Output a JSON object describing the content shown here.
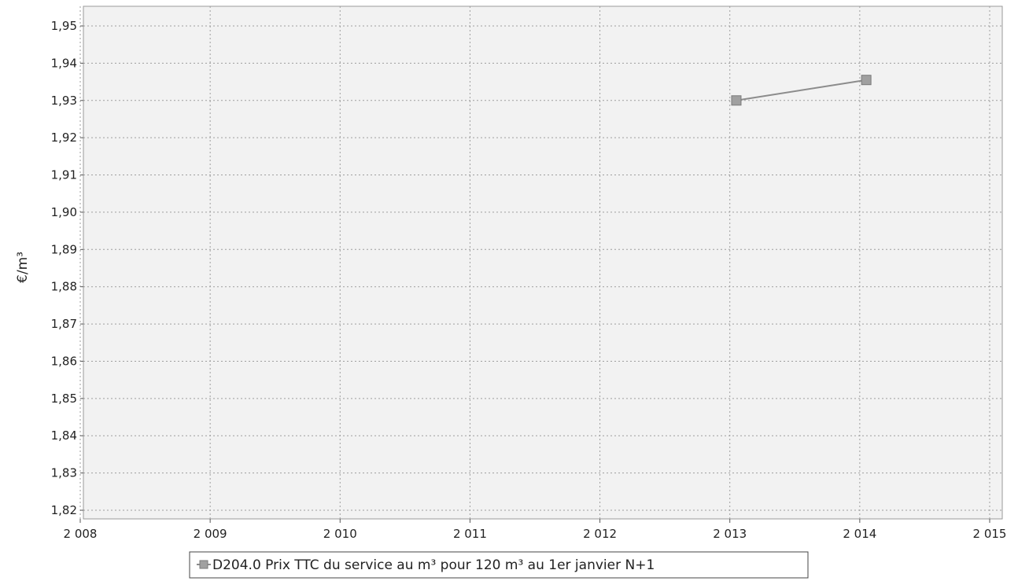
{
  "chart_data": {
    "type": "line",
    "title": "",
    "xlabel": "",
    "ylabel": "€/m³",
    "xlim": [
      2008,
      2015
    ],
    "ylim": [
      1.82,
      1.955
    ],
    "x_ticks": [
      {
        "value": 2008,
        "label": "2 008"
      },
      {
        "value": 2009,
        "label": "2 009"
      },
      {
        "value": 2010,
        "label": "2 010"
      },
      {
        "value": 2011,
        "label": "2 011"
      },
      {
        "value": 2012,
        "label": "2 012"
      },
      {
        "value": 2013,
        "label": "2 013"
      },
      {
        "value": 2014,
        "label": "2 014"
      },
      {
        "value": 2015,
        "label": "2 015"
      }
    ],
    "y_ticks": [
      {
        "value": 1.82,
        "label": "1,82"
      },
      {
        "value": 1.83,
        "label": "1,83"
      },
      {
        "value": 1.84,
        "label": "1,84"
      },
      {
        "value": 1.85,
        "label": "1,85"
      },
      {
        "value": 1.86,
        "label": "1,86"
      },
      {
        "value": 1.87,
        "label": "1,87"
      },
      {
        "value": 1.88,
        "label": "1,88"
      },
      {
        "value": 1.89,
        "label": "1,89"
      },
      {
        "value": 1.9,
        "label": "1,90"
      },
      {
        "value": 1.91,
        "label": "1,91"
      },
      {
        "value": 1.92,
        "label": "1,92"
      },
      {
        "value": 1.93,
        "label": "1,93"
      },
      {
        "value": 1.94,
        "label": "1,94"
      },
      {
        "value": 1.95,
        "label": "1,95"
      }
    ],
    "grid": true,
    "legend_position": "bottom",
    "series": [
      {
        "name": "D204.0 Prix TTC du service au m³ pour 120 m³ au 1er janvier N+1",
        "color": "#8c8c8c",
        "marker": "square",
        "points": [
          {
            "x": 2013.05,
            "y": 1.93
          },
          {
            "x": 2014.05,
            "y": 1.9355
          }
        ]
      }
    ]
  }
}
